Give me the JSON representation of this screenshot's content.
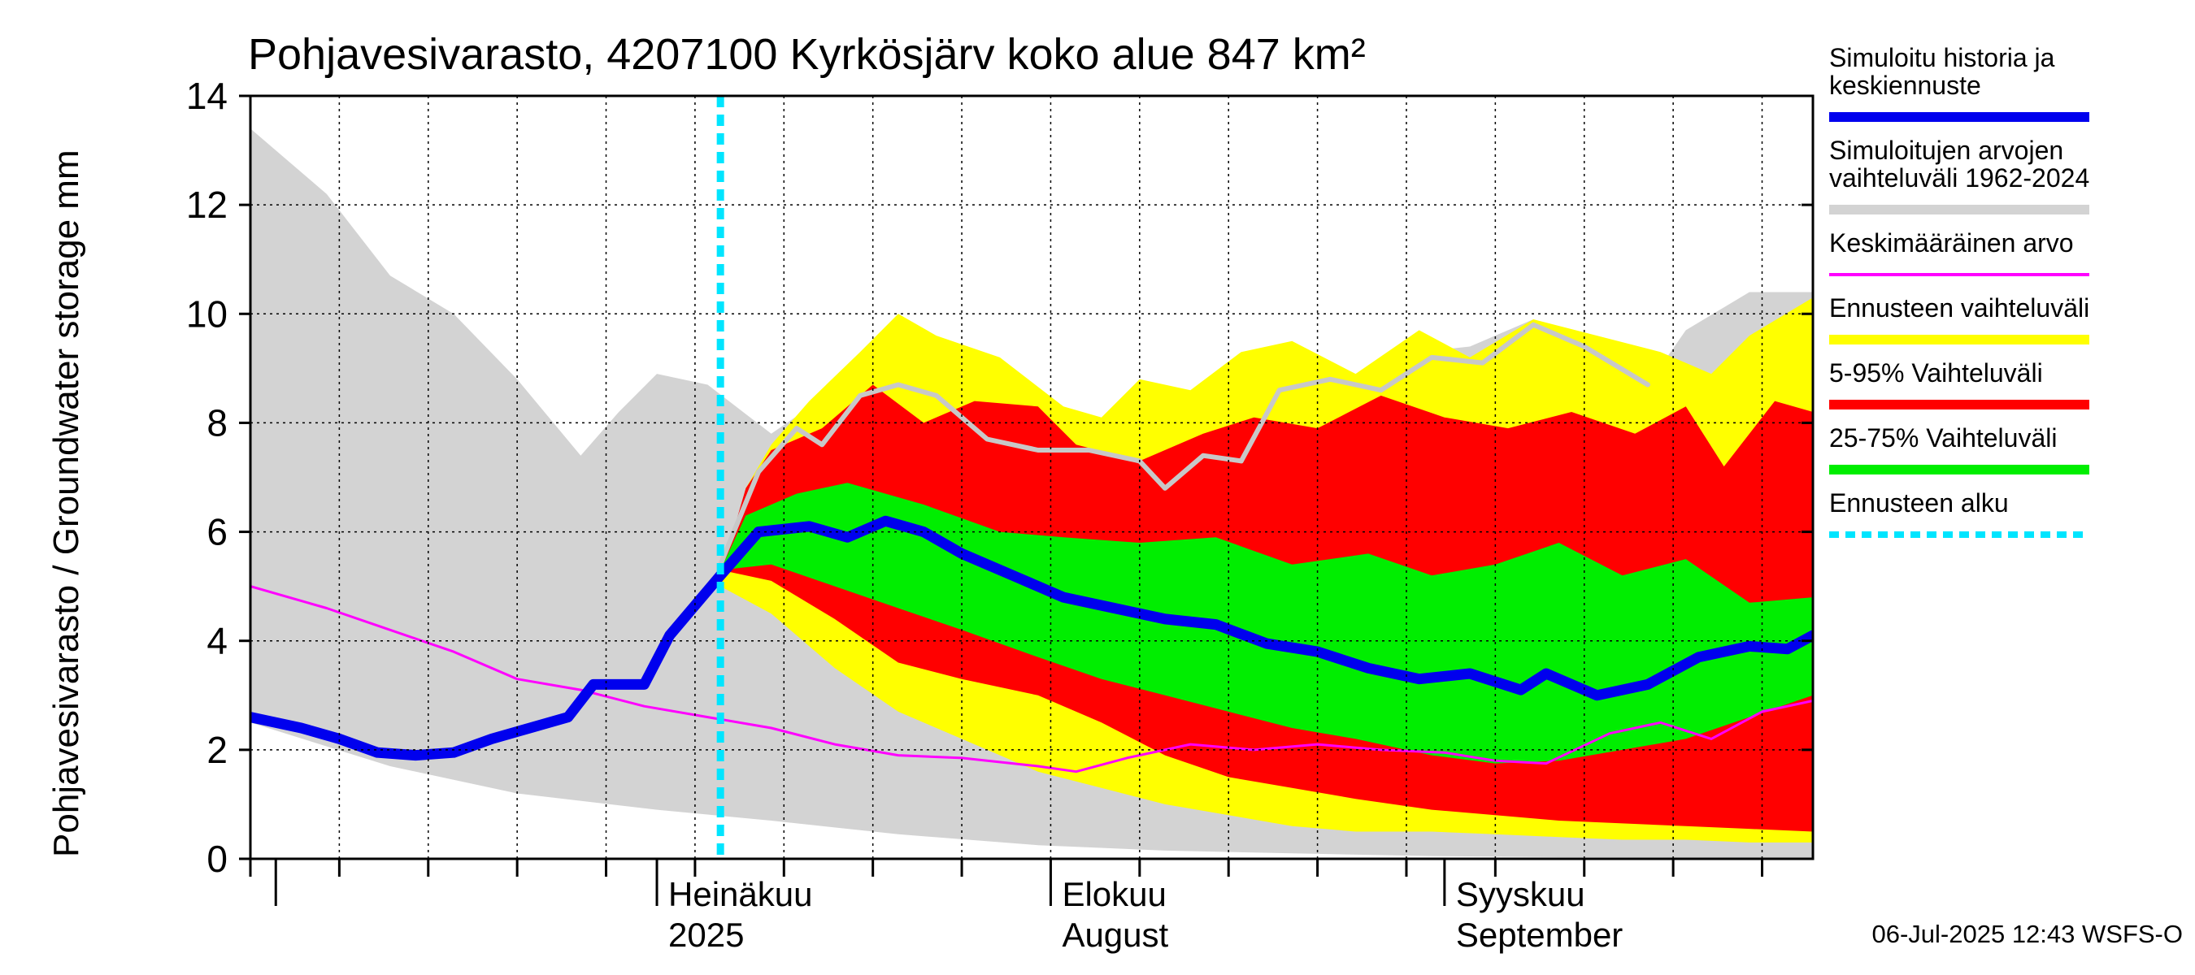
{
  "chart_data": {
    "type": "area",
    "title": "Pohjavesivarasto, 4207100 Kyrkösjärv koko alue 847 km²",
    "ylabel": "Pohjavesivarasto / Groundwater storage   mm",
    "ylim": [
      0,
      14
    ],
    "yticks": [
      "0",
      "2",
      "4",
      "6",
      "8",
      "10",
      "12",
      "14"
    ],
    "x_range": [
      "2025-05-30",
      "2025-09-30"
    ],
    "grid": true,
    "legend_position": "right",
    "month_labels": [
      {
        "date": "2025-07-01",
        "line1": "Heinäkuu",
        "line2": "2025"
      },
      {
        "date": "2025-08-01",
        "line1": "Elokuu",
        "line2": "August"
      },
      {
        "date": "2025-09-01",
        "line1": "Syyskuu",
        "line2": "September"
      }
    ],
    "forecast_start": "2025-07-06",
    "footer": "06-Jul-2025 12:43 WSFS-O",
    "legend": [
      {
        "label": "Simuloitu historia ja keskiennuste",
        "color": "#0000ee",
        "style": "thick"
      },
      {
        "label": "Simuloitujen arvojen vaihteluväli 1962-2024",
        "color": "#d3d3d3",
        "style": "band"
      },
      {
        "label": "Keskimääräinen arvo",
        "color": "#ff00ff",
        "style": "line"
      },
      {
        "label": "Ennusteen vaihteluväli",
        "color": "#ffff00",
        "style": "band"
      },
      {
        "label": "5-95% Vaihteluväli",
        "color": "#ff0000",
        "style": "band"
      },
      {
        "label": "25-75% Vaihteluväli",
        "color": "#00ee00",
        "style": "band"
      },
      {
        "label": "Ennusteen alku",
        "color": "#00e5ff",
        "style": "dashed"
      }
    ],
    "series": [
      {
        "key": "hist_range",
        "color": "#d3d3d3",
        "upper": [
          [
            "2025-05-30",
            13.4
          ],
          [
            "2025-06-05",
            12.2
          ],
          [
            "2025-06-10",
            10.7
          ],
          [
            "2025-06-15",
            10.0
          ],
          [
            "2025-06-20",
            8.8
          ],
          [
            "2025-06-25",
            7.4
          ],
          [
            "2025-06-28",
            8.2
          ],
          [
            "2025-07-01",
            8.9
          ],
          [
            "2025-07-05",
            8.7
          ],
          [
            "2025-07-10",
            7.8
          ],
          [
            "2025-07-15",
            8.6
          ],
          [
            "2025-07-20",
            8.6
          ],
          [
            "2025-07-25",
            7.6
          ],
          [
            "2025-07-30",
            7.5
          ],
          [
            "2025-08-05",
            6.8
          ],
          [
            "2025-08-10",
            7.3
          ],
          [
            "2025-08-15",
            8.4
          ],
          [
            "2025-08-20",
            8.8
          ],
          [
            "2025-08-25",
            8.6
          ],
          [
            "2025-08-30",
            9.3
          ],
          [
            "2025-09-03",
            9.4
          ],
          [
            "2025-09-08",
            9.9
          ],
          [
            "2025-09-13",
            9.3
          ],
          [
            "2025-09-17",
            8.7
          ],
          [
            "2025-09-20",
            9.7
          ],
          [
            "2025-09-25",
            10.4
          ],
          [
            "2025-09-30",
            10.4
          ]
        ],
        "lower": [
          [
            "2025-05-30",
            2.5
          ],
          [
            "2025-06-10",
            1.7
          ],
          [
            "2025-06-20",
            1.2
          ],
          [
            "2025-07-01",
            0.9
          ],
          [
            "2025-07-10",
            0.7
          ],
          [
            "2025-07-20",
            0.45
          ],
          [
            "2025-07-31",
            0.25
          ],
          [
            "2025-08-10",
            0.15
          ],
          [
            "2025-08-20",
            0.1
          ],
          [
            "2025-08-31",
            0.05
          ],
          [
            "2025-09-10",
            0.03
          ],
          [
            "2025-09-30",
            0.02
          ]
        ]
      },
      {
        "key": "forecast_range",
        "color": "#ffff00",
        "upper": [
          [
            "2025-07-06",
            5.0
          ],
          [
            "2025-07-08",
            6.8
          ],
          [
            "2025-07-10",
            7.6
          ],
          [
            "2025-07-13",
            8.4
          ],
          [
            "2025-07-17",
            9.3
          ],
          [
            "2025-07-20",
            10.0
          ],
          [
            "2025-07-23",
            9.6
          ],
          [
            "2025-07-28",
            9.2
          ],
          [
            "2025-08-02",
            8.3
          ],
          [
            "2025-08-05",
            8.1
          ],
          [
            "2025-08-08",
            8.8
          ],
          [
            "2025-08-12",
            8.6
          ],
          [
            "2025-08-16",
            9.3
          ],
          [
            "2025-08-20",
            9.5
          ],
          [
            "2025-08-25",
            8.9
          ],
          [
            "2025-08-30",
            9.7
          ],
          [
            "2025-09-03",
            9.2
          ],
          [
            "2025-09-08",
            9.9
          ],
          [
            "2025-09-13",
            9.6
          ],
          [
            "2025-09-18",
            9.3
          ],
          [
            "2025-09-22",
            8.9
          ],
          [
            "2025-09-25",
            9.6
          ],
          [
            "2025-09-30",
            10.3
          ]
        ],
        "lower": [
          [
            "2025-07-06",
            5.0
          ],
          [
            "2025-07-10",
            4.5
          ],
          [
            "2025-07-15",
            3.5
          ],
          [
            "2025-07-20",
            2.7
          ],
          [
            "2025-07-25",
            2.2
          ],
          [
            "2025-07-31",
            1.6
          ],
          [
            "2025-08-05",
            1.3
          ],
          [
            "2025-08-10",
            1.0
          ],
          [
            "2025-08-15",
            0.8
          ],
          [
            "2025-08-20",
            0.6
          ],
          [
            "2025-08-25",
            0.5
          ],
          [
            "2025-08-31",
            0.5
          ],
          [
            "2025-09-05",
            0.45
          ],
          [
            "2025-09-10",
            0.4
          ],
          [
            "2025-09-15",
            0.35
          ],
          [
            "2025-09-20",
            0.35
          ],
          [
            "2025-09-25",
            0.3
          ],
          [
            "2025-09-30",
            0.3
          ]
        ]
      },
      {
        "key": "p5_95",
        "color": "#ff0000",
        "upper": [
          [
            "2025-07-06",
            5.2
          ],
          [
            "2025-07-08",
            6.8
          ],
          [
            "2025-07-10",
            7.5
          ],
          [
            "2025-07-14",
            7.9
          ],
          [
            "2025-07-18",
            8.7
          ],
          [
            "2025-07-22",
            8.0
          ],
          [
            "2025-07-26",
            8.4
          ],
          [
            "2025-07-31",
            8.3
          ],
          [
            "2025-08-03",
            7.6
          ],
          [
            "2025-08-08",
            7.3
          ],
          [
            "2025-08-13",
            7.8
          ],
          [
            "2025-08-17",
            8.1
          ],
          [
            "2025-08-22",
            7.9
          ],
          [
            "2025-08-27",
            8.5
          ],
          [
            "2025-09-01",
            8.1
          ],
          [
            "2025-09-06",
            7.9
          ],
          [
            "2025-09-11",
            8.2
          ],
          [
            "2025-09-16",
            7.8
          ],
          [
            "2025-09-20",
            8.3
          ],
          [
            "2025-09-23",
            7.2
          ],
          [
            "2025-09-27",
            8.4
          ],
          [
            "2025-09-30",
            8.2
          ]
        ],
        "lower": [
          [
            "2025-07-06",
            5.3
          ],
          [
            "2025-07-10",
            5.1
          ],
          [
            "2025-07-15",
            4.4
          ],
          [
            "2025-07-20",
            3.6
          ],
          [
            "2025-07-25",
            3.3
          ],
          [
            "2025-07-31",
            3.0
          ],
          [
            "2025-08-05",
            2.5
          ],
          [
            "2025-08-10",
            1.9
          ],
          [
            "2025-08-15",
            1.5
          ],
          [
            "2025-08-20",
            1.3
          ],
          [
            "2025-08-25",
            1.1
          ],
          [
            "2025-08-31",
            0.9
          ],
          [
            "2025-09-05",
            0.8
          ],
          [
            "2025-09-10",
            0.7
          ],
          [
            "2025-09-15",
            0.65
          ],
          [
            "2025-09-20",
            0.6
          ],
          [
            "2025-09-25",
            0.55
          ],
          [
            "2025-09-30",
            0.5
          ]
        ]
      },
      {
        "key": "p25_75",
        "color": "#00ee00",
        "upper": [
          [
            "2025-07-06",
            5.3
          ],
          [
            "2025-07-08",
            6.3
          ],
          [
            "2025-07-12",
            6.7
          ],
          [
            "2025-07-16",
            6.9
          ],
          [
            "2025-07-22",
            6.5
          ],
          [
            "2025-07-28",
            6.0
          ],
          [
            "2025-08-02",
            5.9
          ],
          [
            "2025-08-08",
            5.8
          ],
          [
            "2025-08-14",
            5.9
          ],
          [
            "2025-08-20",
            5.4
          ],
          [
            "2025-08-26",
            5.6
          ],
          [
            "2025-08-31",
            5.2
          ],
          [
            "2025-09-05",
            5.4
          ],
          [
            "2025-09-10",
            5.8
          ],
          [
            "2025-09-15",
            5.2
          ],
          [
            "2025-09-20",
            5.5
          ],
          [
            "2025-09-25",
            4.7
          ],
          [
            "2025-09-30",
            4.8
          ]
        ],
        "lower": [
          [
            "2025-07-06",
            5.3
          ],
          [
            "2025-07-10",
            5.4
          ],
          [
            "2025-07-15",
            5.0
          ],
          [
            "2025-07-20",
            4.6
          ],
          [
            "2025-07-25",
            4.2
          ],
          [
            "2025-07-31",
            3.7
          ],
          [
            "2025-08-05",
            3.3
          ],
          [
            "2025-08-10",
            3.0
          ],
          [
            "2025-08-15",
            2.7
          ],
          [
            "2025-08-20",
            2.4
          ],
          [
            "2025-08-25",
            2.2
          ],
          [
            "2025-08-31",
            1.9
          ],
          [
            "2025-09-05",
            1.75
          ],
          [
            "2025-09-10",
            1.8
          ],
          [
            "2025-09-15",
            2.0
          ],
          [
            "2025-09-20",
            2.2
          ],
          [
            "2025-09-25",
            2.6
          ],
          [
            "2025-09-30",
            3.0
          ]
        ]
      }
    ],
    "lines": [
      {
        "key": "hist_grey_line",
        "color": "#c8c8c8",
        "width": 6,
        "points": [
          [
            "2025-07-06",
            5.4
          ],
          [
            "2025-07-09",
            7.1
          ],
          [
            "2025-07-12",
            7.9
          ],
          [
            "2025-07-14",
            7.6
          ],
          [
            "2025-07-17",
            8.5
          ],
          [
            "2025-07-20",
            8.7
          ],
          [
            "2025-07-23",
            8.5
          ],
          [
            "2025-07-27",
            7.7
          ],
          [
            "2025-07-31",
            7.5
          ],
          [
            "2025-08-04",
            7.5
          ],
          [
            "2025-08-08",
            7.3
          ],
          [
            "2025-08-10",
            6.8
          ],
          [
            "2025-08-13",
            7.4
          ],
          [
            "2025-08-16",
            7.3
          ],
          [
            "2025-08-19",
            8.6
          ],
          [
            "2025-08-23",
            8.8
          ],
          [
            "2025-08-27",
            8.6
          ],
          [
            "2025-08-31",
            9.2
          ],
          [
            "2025-09-04",
            9.1
          ],
          [
            "2025-09-08",
            9.8
          ],
          [
            "2025-09-12",
            9.4
          ],
          [
            "2025-09-17",
            8.7
          ]
        ]
      },
      {
        "key": "mean",
        "color": "#ff00ff",
        "width": 3,
        "points": [
          [
            "2025-05-30",
            5.0
          ],
          [
            "2025-06-05",
            4.6
          ],
          [
            "2025-06-10",
            4.2
          ],
          [
            "2025-06-15",
            3.8
          ],
          [
            "2025-06-20",
            3.3
          ],
          [
            "2025-06-25",
            3.1
          ],
          [
            "2025-06-30",
            2.8
          ],
          [
            "2025-07-05",
            2.6
          ],
          [
            "2025-07-10",
            2.4
          ],
          [
            "2025-07-15",
            2.1
          ],
          [
            "2025-07-20",
            1.9
          ],
          [
            "2025-07-25",
            1.85
          ],
          [
            "2025-07-31",
            1.7
          ],
          [
            "2025-08-03",
            1.6
          ],
          [
            "2025-08-07",
            1.85
          ],
          [
            "2025-08-12",
            2.1
          ],
          [
            "2025-08-17",
            2.0
          ],
          [
            "2025-08-22",
            2.1
          ],
          [
            "2025-08-27",
            2.0
          ],
          [
            "2025-09-01",
            1.95
          ],
          [
            "2025-09-05",
            1.8
          ],
          [
            "2025-09-09",
            1.75
          ],
          [
            "2025-09-14",
            2.3
          ],
          [
            "2025-09-18",
            2.5
          ],
          [
            "2025-09-22",
            2.2
          ],
          [
            "2025-09-26",
            2.7
          ],
          [
            "2025-09-30",
            2.9
          ]
        ]
      },
      {
        "key": "median_forecast",
        "color": "#0000ee",
        "width": 13,
        "points": [
          [
            "2025-05-30",
            2.6
          ],
          [
            "2025-06-03",
            2.4
          ],
          [
            "2025-06-06",
            2.2
          ],
          [
            "2025-06-09",
            1.95
          ],
          [
            "2025-06-12",
            1.9
          ],
          [
            "2025-06-15",
            1.95
          ],
          [
            "2025-06-18",
            2.2
          ],
          [
            "2025-06-21",
            2.4
          ],
          [
            "2025-06-24",
            2.6
          ],
          [
            "2025-06-26",
            3.2
          ],
          [
            "2025-06-30",
            3.2
          ],
          [
            "2025-07-02",
            4.1
          ],
          [
            "2025-07-06",
            5.2
          ],
          [
            "2025-07-09",
            6.0
          ],
          [
            "2025-07-13",
            6.1
          ],
          [
            "2025-07-16",
            5.9
          ],
          [
            "2025-07-19",
            6.2
          ],
          [
            "2025-07-22",
            6.0
          ],
          [
            "2025-07-25",
            5.6
          ],
          [
            "2025-07-29",
            5.2
          ],
          [
            "2025-08-02",
            4.8
          ],
          [
            "2025-08-06",
            4.6
          ],
          [
            "2025-08-10",
            4.4
          ],
          [
            "2025-08-14",
            4.3
          ],
          [
            "2025-08-18",
            3.95
          ],
          [
            "2025-08-22",
            3.8
          ],
          [
            "2025-08-26",
            3.5
          ],
          [
            "2025-08-30",
            3.3
          ],
          [
            "2025-09-03",
            3.4
          ],
          [
            "2025-09-07",
            3.1
          ],
          [
            "2025-09-09",
            3.4
          ],
          [
            "2025-09-13",
            3.0
          ],
          [
            "2025-09-17",
            3.2
          ],
          [
            "2025-09-21",
            3.7
          ],
          [
            "2025-09-25",
            3.9
          ],
          [
            "2025-09-28",
            3.85
          ],
          [
            "2025-09-30",
            4.1
          ]
        ]
      }
    ]
  }
}
